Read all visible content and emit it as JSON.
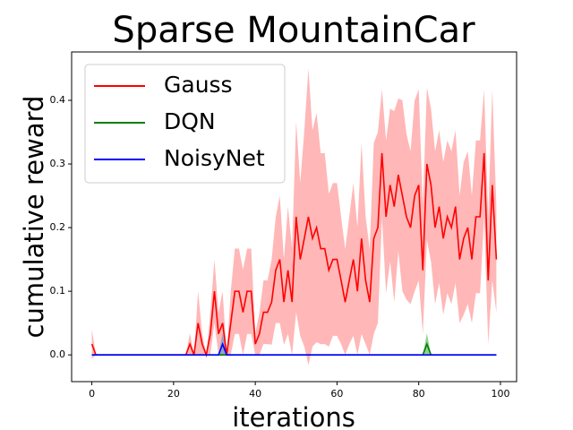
{
  "chart_data": {
    "type": "line",
    "title": "Sparse MountainCar",
    "x_label": "iterations",
    "y_label": "cumulative reward",
    "x": [
      0,
      1,
      2,
      3,
      4,
      5,
      6,
      7,
      8,
      9,
      10,
      11,
      12,
      13,
      14,
      15,
      16,
      17,
      18,
      19,
      20,
      21,
      22,
      23,
      24,
      25,
      26,
      27,
      28,
      29,
      30,
      31,
      32,
      33,
      34,
      35,
      36,
      37,
      38,
      39,
      40,
      41,
      42,
      43,
      44,
      45,
      46,
      47,
      48,
      49,
      50,
      51,
      52,
      53,
      54,
      55,
      56,
      57,
      58,
      59,
      60,
      61,
      62,
      63,
      64,
      65,
      66,
      67,
      68,
      69,
      70,
      71,
      72,
      73,
      74,
      75,
      76,
      77,
      78,
      79,
      80,
      81,
      82,
      83,
      84,
      85,
      86,
      87,
      88,
      89,
      90,
      91,
      92,
      93,
      94,
      95,
      96,
      97,
      98,
      99
    ],
    "series": [
      {
        "name": "Gauss",
        "color": "#ff0000",
        "band_color": "#ff9999",
        "values": [
          0.017,
          0,
          0,
          0,
          0,
          0,
          0,
          0,
          0,
          0,
          0,
          0,
          0,
          0,
          0,
          0,
          0,
          0,
          0,
          0,
          0,
          0,
          0,
          0,
          0.017,
          0,
          0.05,
          0.017,
          0,
          0.033,
          0.1,
          0.033,
          0.05,
          0,
          0.05,
          0.1,
          0.1,
          0.067,
          0.1,
          0.1,
          0.017,
          0.033,
          0.067,
          0.067,
          0.083,
          0.133,
          0.15,
          0.083,
          0.133,
          0.083,
          0.217,
          0.15,
          0.183,
          0.217,
          0.183,
          0.2,
          0.167,
          0.167,
          0.133,
          0.15,
          0.15,
          0.117,
          0.083,
          0.117,
          0.15,
          0.1,
          0.183,
          0.117,
          0.083,
          0.183,
          0.2,
          0.317,
          0.217,
          0.267,
          0.233,
          0.283,
          0.25,
          0.217,
          0.2,
          0.25,
          0.267,
          0.133,
          0.3,
          0.267,
          0.2,
          0.233,
          0.183,
          0.217,
          0.2,
          0.233,
          0.15,
          0.183,
          0.2,
          0.15,
          0.217,
          0.217,
          0.317,
          0.117,
          0.267,
          0.15
        ],
        "error": [
          0.023,
          0,
          0,
          0,
          0,
          0,
          0,
          0,
          0,
          0,
          0,
          0,
          0,
          0,
          0,
          0,
          0,
          0,
          0,
          0,
          0,
          0,
          0,
          0,
          0.017,
          0,
          0.05,
          0.017,
          0,
          0.033,
          0.05,
          0.033,
          0.05,
          0,
          0.05,
          0.067,
          0.067,
          0.067,
          0.067,
          0.067,
          0.017,
          0.033,
          0.05,
          0.05,
          0.067,
          0.083,
          0.1,
          0.067,
          0.1,
          0.083,
          0.15,
          0.12,
          0.17,
          0.233,
          0.17,
          0.18,
          0.15,
          0.15,
          0.12,
          0.12,
          0.12,
          0.1,
          0.083,
          0.1,
          0.12,
          0.1,
          0.15,
          0.1,
          0.083,
          0.15,
          0.15,
          0.1,
          0.12,
          0.12,
          0.15,
          0.12,
          0.15,
          0.13,
          0.12,
          0.15,
          0.15,
          0.1,
          0.12,
          0.12,
          0.12,
          0.12,
          0.12,
          0.12,
          0.12,
          0.12,
          0.1,
          0.12,
          0.12,
          0.1,
          0.12,
          0.12,
          0.1,
          0.1,
          0.15,
          0.083
        ]
      },
      {
        "name": "DQN",
        "color": "#008000",
        "band_color": "#66bb66",
        "values": [
          0,
          0,
          0,
          0,
          0,
          0,
          0,
          0,
          0,
          0,
          0,
          0,
          0,
          0,
          0,
          0,
          0,
          0,
          0,
          0,
          0,
          0,
          0,
          0,
          0,
          0,
          0,
          0,
          0,
          0,
          0,
          0,
          0,
          0,
          0,
          0,
          0,
          0,
          0,
          0,
          0,
          0,
          0,
          0,
          0,
          0,
          0,
          0,
          0,
          0,
          0,
          0,
          0,
          0,
          0,
          0,
          0,
          0,
          0,
          0,
          0,
          0,
          0,
          0,
          0,
          0,
          0,
          0,
          0,
          0,
          0,
          0,
          0,
          0,
          0,
          0,
          0,
          0,
          0,
          0,
          0,
          0,
          0.017,
          0,
          0,
          0,
          0,
          0,
          0,
          0,
          0,
          0,
          0,
          0,
          0,
          0,
          0,
          0,
          0,
          0
        ],
        "error": [
          0,
          0,
          0,
          0,
          0,
          0,
          0,
          0,
          0,
          0,
          0,
          0,
          0,
          0,
          0,
          0,
          0,
          0,
          0,
          0,
          0,
          0,
          0,
          0,
          0,
          0,
          0,
          0,
          0,
          0,
          0,
          0,
          0,
          0,
          0,
          0,
          0,
          0,
          0,
          0,
          0,
          0,
          0,
          0,
          0,
          0,
          0,
          0,
          0,
          0,
          0,
          0,
          0,
          0,
          0,
          0,
          0,
          0,
          0,
          0,
          0,
          0,
          0,
          0,
          0,
          0,
          0,
          0,
          0,
          0,
          0,
          0,
          0,
          0,
          0,
          0,
          0,
          0,
          0,
          0,
          0,
          0,
          0.017,
          0,
          0,
          0,
          0,
          0,
          0,
          0,
          0,
          0,
          0,
          0,
          0,
          0,
          0,
          0,
          0,
          0
        ]
      },
      {
        "name": "NoisyNet",
        "color": "#0000ff",
        "band_color": "#6699cc",
        "values": [
          0,
          0,
          0,
          0,
          0,
          0,
          0,
          0,
          0,
          0,
          0,
          0,
          0,
          0,
          0,
          0,
          0,
          0,
          0,
          0,
          0,
          0,
          0,
          0,
          0,
          0,
          0,
          0,
          0,
          0,
          0,
          0,
          0.017,
          0,
          0,
          0,
          0,
          0,
          0,
          0,
          0,
          0,
          0,
          0,
          0,
          0,
          0,
          0,
          0,
          0,
          0,
          0,
          0,
          0,
          0,
          0,
          0,
          0,
          0,
          0,
          0,
          0,
          0,
          0,
          0,
          0,
          0,
          0,
          0,
          0,
          0,
          0,
          0,
          0,
          0,
          0,
          0,
          0,
          0,
          0,
          0,
          0,
          0,
          0,
          0,
          0,
          0,
          0,
          0,
          0,
          0,
          0,
          0,
          0,
          0,
          0,
          0,
          0,
          0,
          0
        ],
        "error": [
          0,
          0,
          0,
          0,
          0,
          0,
          0,
          0,
          0,
          0,
          0,
          0,
          0,
          0,
          0,
          0,
          0,
          0,
          0,
          0,
          0,
          0,
          0,
          0,
          0,
          0,
          0,
          0,
          0,
          0,
          0,
          0,
          0.017,
          0,
          0,
          0,
          0,
          0,
          0,
          0,
          0,
          0,
          0,
          0,
          0,
          0,
          0,
          0,
          0,
          0,
          0,
          0,
          0,
          0,
          0,
          0,
          0,
          0,
          0,
          0,
          0,
          0,
          0,
          0,
          0,
          0,
          0,
          0,
          0,
          0,
          0,
          0,
          0,
          0,
          0,
          0,
          0,
          0,
          0,
          0,
          0,
          0,
          0,
          0,
          0,
          0,
          0,
          0,
          0,
          0,
          0,
          0,
          0,
          0,
          0,
          0,
          0,
          0,
          0,
          0
        ]
      }
    ],
    "xlim": [
      -4.95,
      103.95
    ],
    "ylim": [
      -0.042,
      0.476
    ],
    "xticks": [
      0,
      20,
      40,
      60,
      80,
      100
    ],
    "yticks": [
      {
        "value": 0,
        "label": "0.0"
      },
      0.1,
      0.2,
      0.3,
      0.4
    ],
    "legend": "upper left"
  }
}
